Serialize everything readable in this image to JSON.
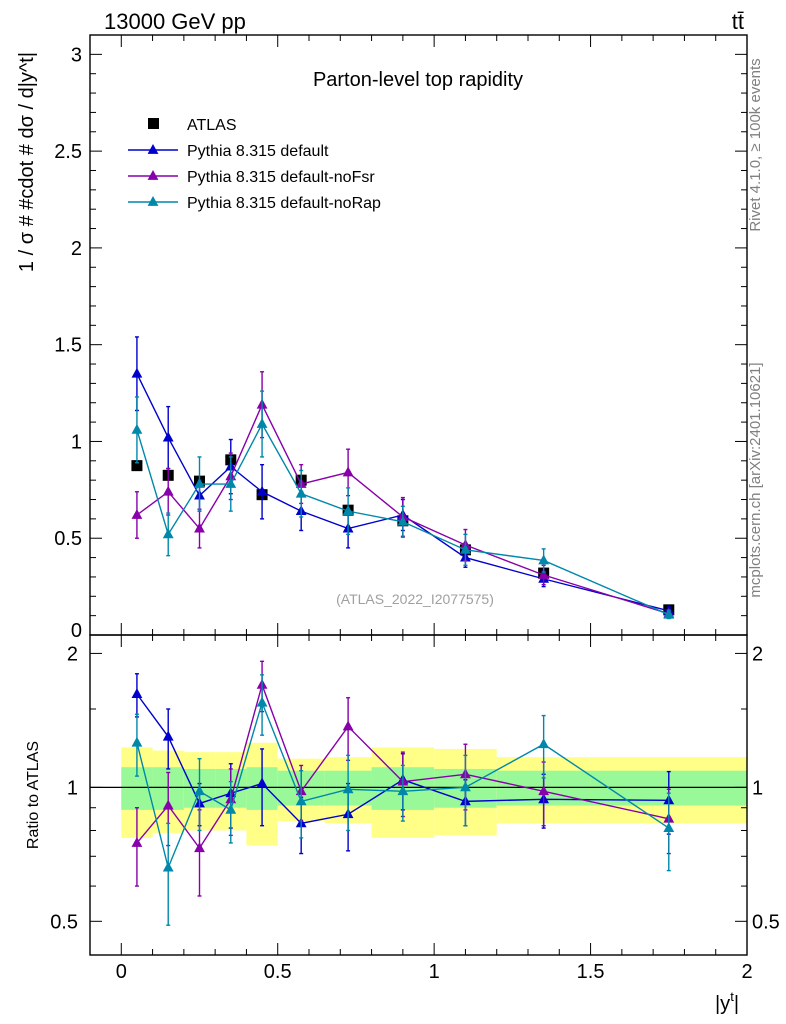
{
  "header": {
    "energy_label": "13000 GeV pp",
    "process_label": "tt̄",
    "plot_title": "Parton-level top rapidity",
    "analysis_ref": "(ATLAS_2022_I2077575)",
    "side_label_rivet": "Rivet 4.1.0, ≥ 100k events",
    "side_label_mcplots": "mcplots.cern.ch [arXiv:2401.10621]"
  },
  "chart_data": [
    {
      "type": "scatter",
      "panel": "main",
      "title": "Parton-level top rapidity",
      "xlabel": "|y^t|",
      "ylabel": "1 / σ # #cdot # dσ / d|y^t|",
      "xlim": [
        -0.1,
        2.0
      ],
      "ylim": [
        0,
        3.1
      ],
      "yticks": [
        0.5,
        1,
        1.5,
        2,
        2.5,
        3
      ],
      "ytick_labels": [
        "0.5",
        "1",
        "1.5",
        "2",
        "2.5",
        "3"
      ],
      "ylabel_bottom_cut": "0",
      "legend_position": "top-left",
      "x": [
        0.05,
        0.15,
        0.25,
        0.35,
        0.45,
        0.575,
        0.725,
        0.9,
        1.1,
        1.35,
        1.75
      ],
      "series": [
        {
          "name": "ATLAS",
          "color": "#000000",
          "marker": "square",
          "values": [
            0.875,
            0.825,
            0.795,
            0.905,
            0.725,
            0.8,
            0.645,
            0.59,
            0.44,
            0.32,
            0.13
          ],
          "errors": [
            0.0,
            0.0,
            0.0,
            0.0,
            0.0,
            0.0,
            0.0,
            0.0,
            0.0,
            0.0,
            0.0
          ]
        },
        {
          "name": "Pythia 8.315 default",
          "color": "#0000cc",
          "marker": "triangle",
          "values": [
            1.35,
            1.02,
            0.72,
            0.87,
            0.74,
            0.64,
            0.55,
            0.62,
            0.4,
            0.29,
            0.125
          ],
          "errors": [
            0.19,
            0.16,
            0.08,
            0.14,
            0.14,
            0.1,
            0.1,
            0.08,
            0.05,
            0.04,
            0.02
          ]
        },
        {
          "name": "Pythia 8.315 default-noFsr",
          "color": "#8800aa",
          "marker": "triangle",
          "values": [
            0.62,
            0.74,
            0.55,
            0.82,
            1.19,
            0.78,
            0.84,
            0.61,
            0.465,
            0.31,
            0.11
          ],
          "errors": [
            0.12,
            0.12,
            0.1,
            0.12,
            0.17,
            0.1,
            0.12,
            0.1,
            0.08,
            0.05,
            0.02
          ]
        },
        {
          "name": "Pythia 8.315 default-noRap",
          "color": "#0088aa",
          "marker": "triangle",
          "values": [
            1.06,
            0.52,
            0.78,
            0.78,
            1.09,
            0.73,
            0.64,
            0.585,
            0.44,
            0.385,
            0.105
          ],
          "errors": [
            0.17,
            0.11,
            0.14,
            0.14,
            0.17,
            0.12,
            0.12,
            0.08,
            0.08,
            0.06,
            0.02
          ]
        }
      ]
    },
    {
      "type": "scatter",
      "panel": "ratio",
      "xlabel": "|y^t|",
      "ylabel": "Ratio to ATLAS",
      "xlim": [
        -0.1,
        2.0
      ],
      "ylim": [
        0.42,
        2.2
      ],
      "ylog": true,
      "yticks": [
        0.5,
        1,
        2
      ],
      "ytick_labels": [
        "0.5",
        "1",
        "2"
      ],
      "xticks": [
        0,
        0.5,
        1,
        1.5,
        2
      ],
      "xtick_labels": [
        "0",
        "0.5",
        "1",
        "1.5",
        "2"
      ],
      "x": [
        0.05,
        0.15,
        0.25,
        0.35,
        0.45,
        0.575,
        0.725,
        0.9,
        1.1,
        1.35,
        1.75
      ],
      "bands": {
        "bin_edges": [
          0.0,
          0.1,
          0.2,
          0.3,
          0.4,
          0.5,
          0.65,
          0.8,
          1.0,
          1.2,
          1.5,
          2.0
        ],
        "inner": {
          "color": "#99f999",
          "lo": [
            0.89,
            0.89,
            0.9,
            0.9,
            0.89,
            0.91,
            0.91,
            0.89,
            0.9,
            0.91,
            0.91
          ],
          "hi": [
            1.11,
            1.11,
            1.1,
            1.1,
            1.11,
            1.09,
            1.09,
            1.11,
            1.1,
            1.09,
            1.09
          ]
        },
        "outer": {
          "color": "#ffff88",
          "lo": [
            0.77,
            0.79,
            0.8,
            0.8,
            0.74,
            0.84,
            0.83,
            0.77,
            0.78,
            0.83,
            0.83
          ],
          "hi": [
            1.23,
            1.21,
            1.2,
            1.2,
            1.26,
            1.16,
            1.17,
            1.23,
            1.22,
            1.17,
            1.17
          ]
        }
      },
      "series": [
        {
          "name": "Pythia 8.315 default",
          "color": "#0000cc",
          "values": [
            1.62,
            1.3,
            0.92,
            0.97,
            1.02,
            0.83,
            0.87,
            1.04,
            0.93,
            0.94,
            0.935
          ],
          "errors": [
            0.18,
            0.2,
            0.1,
            0.16,
            0.2,
            0.12,
            0.15,
            0.15,
            0.11,
            0.13,
            0.15
          ]
        },
        {
          "name": "Pythia 8.315 default-noFsr",
          "color": "#8800aa",
          "values": [
            0.75,
            0.91,
            0.73,
            0.94,
            1.7,
            0.98,
            1.37,
            1.03,
            1.07,
            0.98,
            0.85
          ],
          "errors": [
            0.15,
            0.17,
            0.16,
            0.16,
            0.22,
            0.14,
            0.22,
            0.17,
            0.18,
            0.16,
            0.14
          ]
        },
        {
          "name": "Pythia 8.315 default-noRap",
          "color": "#0088aa",
          "values": [
            1.26,
            0.66,
            0.98,
            0.89,
            1.55,
            0.93,
            0.99,
            0.98,
            1.0,
            1.25,
            0.81
          ],
          "errors": [
            0.2,
            0.17,
            0.18,
            0.14,
            0.24,
            0.16,
            0.19,
            0.14,
            0.18,
            0.2,
            0.16
          ]
        }
      ]
    }
  ]
}
